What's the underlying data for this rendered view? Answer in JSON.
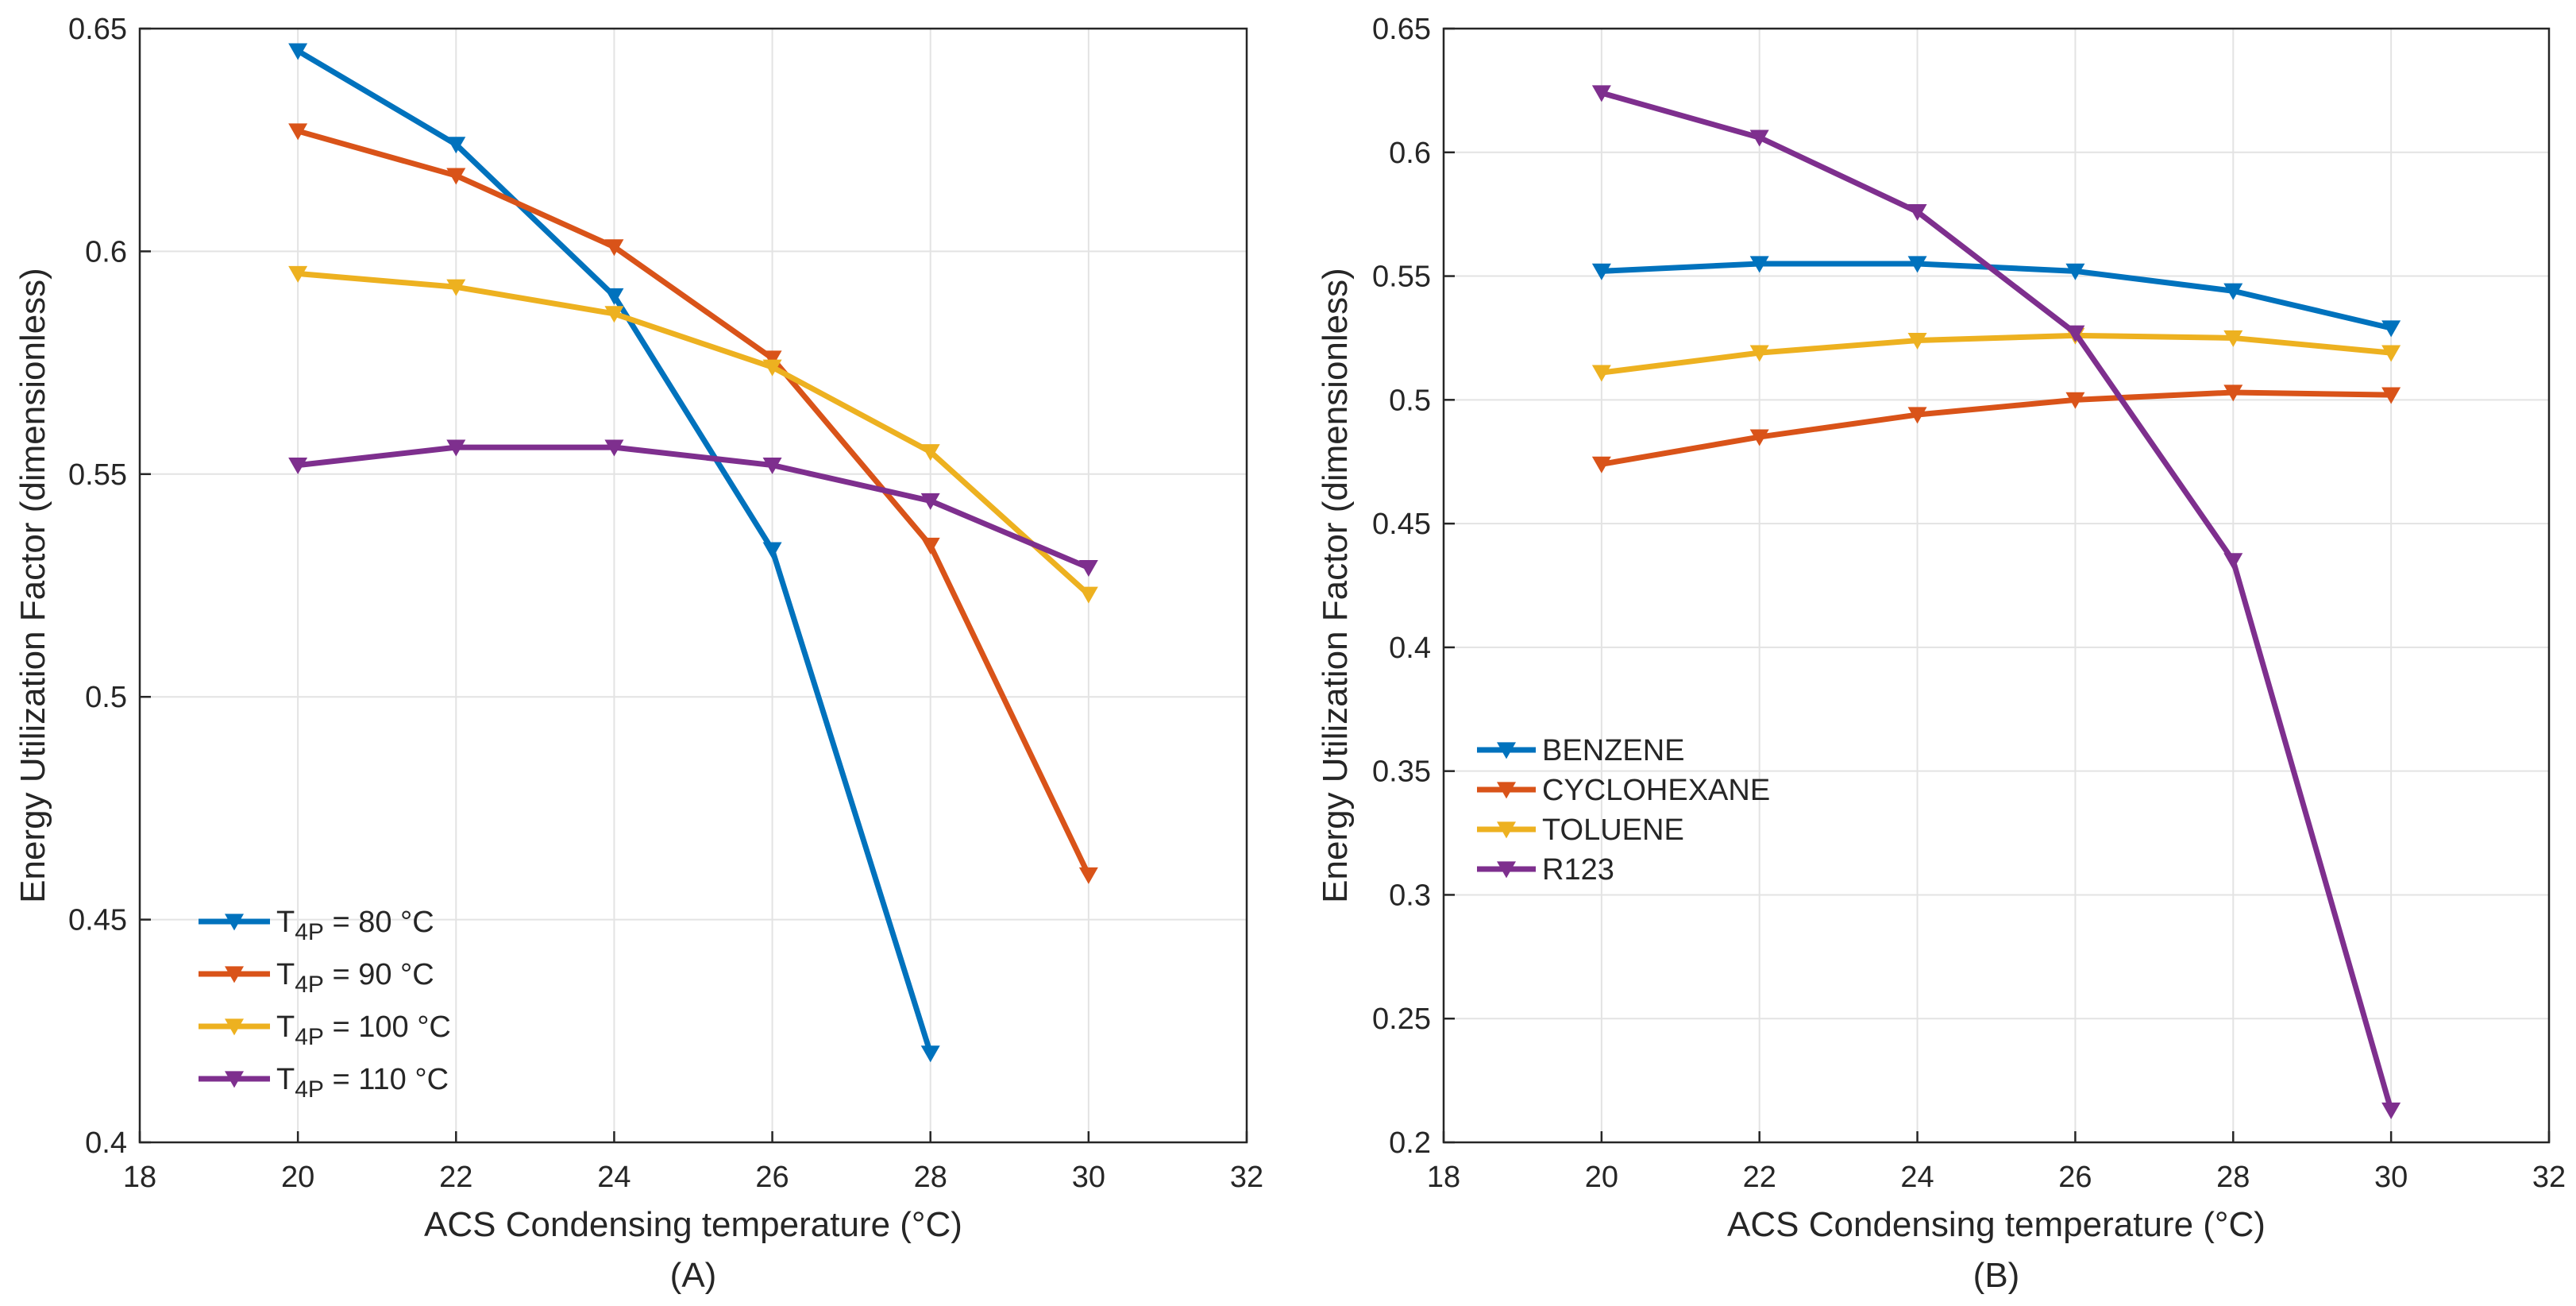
{
  "chart_data": [
    {
      "type": "line",
      "caption": "(A)",
      "xlabel": "ACS Condensing temperature (°C)",
      "ylabel": "Energy Utilization Factor (dimensionless)",
      "xlim": [
        18,
        32
      ],
      "ylim": [
        0.4,
        0.65
      ],
      "xticks": [
        18,
        20,
        22,
        24,
        26,
        28,
        30,
        32
      ],
      "xtick_labels": [
        "18",
        "20",
        "22",
        "24",
        "26",
        "28",
        "30",
        "32"
      ],
      "yticks": [
        0.4,
        0.45,
        0.5,
        0.55,
        0.6,
        0.65
      ],
      "ytick_labels": [
        "0.4",
        "0.45",
        "0.5",
        "0.55",
        "0.6",
        "0.65"
      ],
      "grid": true,
      "legend_position": "bottom-left",
      "marker": "down-triangle",
      "series": [
        {
          "name": "T4P = 80 °C",
          "label_main": "T",
          "label_sub": "4P",
          "label_rest": " = 80 °C",
          "color": "#0072BD",
          "x": [
            20,
            22,
            24,
            26,
            28
          ],
          "y": [
            0.645,
            0.624,
            0.59,
            0.533,
            0.42
          ]
        },
        {
          "name": "T4P = 90 °C",
          "label_main": "T",
          "label_sub": "4P",
          "label_rest": " = 90 °C",
          "color": "#D95319",
          "x": [
            20,
            22,
            24,
            26,
            28,
            30
          ],
          "y": [
            0.627,
            0.617,
            0.601,
            0.576,
            0.534,
            0.46
          ]
        },
        {
          "name": "T4P = 100 °C",
          "label_main": "T",
          "label_sub": "4P",
          "label_rest": " = 100 °C",
          "color": "#EDB120",
          "x": [
            20,
            22,
            24,
            26,
            28,
            30
          ],
          "y": [
            0.595,
            0.592,
            0.586,
            0.574,
            0.555,
            0.523
          ]
        },
        {
          "name": "T4P = 110 °C",
          "label_main": "T",
          "label_sub": "4P",
          "label_rest": " = 110 °C",
          "color": "#7E2F8E",
          "x": [
            20,
            22,
            24,
            26,
            28,
            30
          ],
          "y": [
            0.552,
            0.556,
            0.556,
            0.552,
            0.544,
            0.529
          ]
        }
      ]
    },
    {
      "type": "line",
      "caption": "(B)",
      "xlabel": "ACS Condensing temperature (°C)",
      "ylabel": "Energy Utilization Factor (dimensionless)",
      "xlim": [
        18,
        32
      ],
      "ylim": [
        0.2,
        0.65
      ],
      "xticks": [
        18,
        20,
        22,
        24,
        26,
        28,
        30,
        32
      ],
      "xtick_labels": [
        "18",
        "20",
        "22",
        "24",
        "26",
        "28",
        "30",
        "32"
      ],
      "yticks": [
        0.2,
        0.25,
        0.3,
        0.35,
        0.4,
        0.45,
        0.5,
        0.55,
        0.6,
        0.65
      ],
      "ytick_labels": [
        "0.2",
        "0.25",
        "0.3",
        "0.35",
        "0.4",
        "0.45",
        "0.5",
        "0.55",
        "0.6",
        "0.65"
      ],
      "grid": true,
      "legend_position": "middle-left",
      "marker": "down-triangle",
      "series": [
        {
          "name": "BENZENE",
          "color": "#0072BD",
          "x": [
            20,
            22,
            24,
            26,
            28,
            30
          ],
          "y": [
            0.552,
            0.555,
            0.555,
            0.552,
            0.544,
            0.529
          ]
        },
        {
          "name": "CYCLOHEXANE",
          "color": "#D95319",
          "x": [
            20,
            22,
            24,
            26,
            28,
            30
          ],
          "y": [
            0.474,
            0.485,
            0.494,
            0.5,
            0.503,
            0.502
          ]
        },
        {
          "name": "TOLUENE",
          "color": "#EDB120",
          "x": [
            20,
            22,
            24,
            26,
            28,
            30
          ],
          "y": [
            0.511,
            0.519,
            0.524,
            0.526,
            0.525,
            0.519
          ]
        },
        {
          "name": "R123",
          "color": "#7E2F8E",
          "x": [
            20,
            22,
            24,
            26,
            28,
            30
          ],
          "y": [
            0.624,
            0.606,
            0.576,
            0.527,
            0.435,
            0.213
          ]
        }
      ]
    }
  ]
}
